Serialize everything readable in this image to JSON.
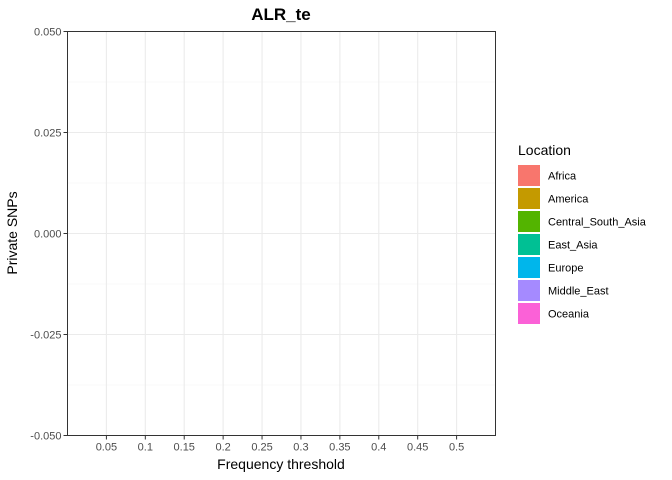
{
  "chart_data": {
    "type": "bar",
    "title": "ALR_te",
    "xlabel": "Frequency threshold",
    "ylabel": "Private SNPs",
    "categories": [
      "0.05",
      "0.1",
      "0.15",
      "0.2",
      "0.25",
      "0.3",
      "0.35",
      "0.4",
      "0.45",
      "0.5"
    ],
    "y_ticks": [
      -0.05,
      -0.025,
      0.0,
      0.025,
      0.05
    ],
    "y_tick_labels": [
      "-0.050",
      "-0.025",
      "0.000",
      "0.025",
      "0.050"
    ],
    "ylim": [
      -0.05,
      0.05
    ],
    "grid": true,
    "legend": {
      "title": "Location",
      "position": "right",
      "items": [
        {
          "label": "Africa",
          "color": "#F8766D"
        },
        {
          "label": "America",
          "color": "#C49A00"
        },
        {
          "label": "Central_South_Asia",
          "color": "#53B400"
        },
        {
          "label": "East_Asia",
          "color": "#00C094"
        },
        {
          "label": "Europe",
          "color": "#00B6EB"
        },
        {
          "label": "Middle_East",
          "color": "#A58AFF"
        },
        {
          "label": "Oceania",
          "color": "#FB61D7"
        }
      ]
    },
    "series": []
  }
}
